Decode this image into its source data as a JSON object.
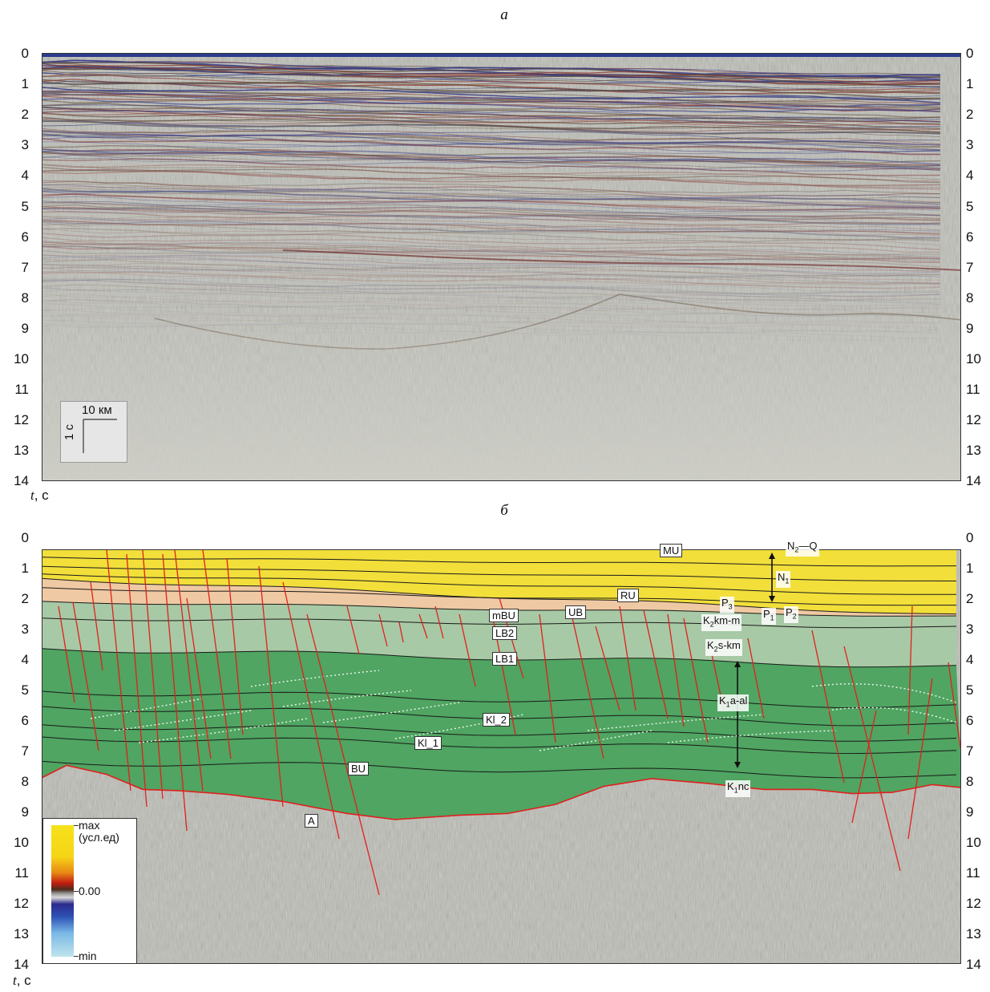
{
  "panel_a": {
    "letter": "а",
    "ticks": [
      "0",
      "1",
      "2",
      "3",
      "4",
      "5",
      "6",
      "7",
      "8",
      "9",
      "10",
      "11",
      "12",
      "13",
      "14"
    ],
    "axis_unit_var": "t",
    "axis_unit": ", с",
    "scale_horizontal": "10 км",
    "scale_vertical": "1 с"
  },
  "panel_b": {
    "letter": "б",
    "ticks": [
      "0",
      "1",
      "2",
      "3",
      "4",
      "5",
      "6",
      "7",
      "8",
      "9",
      "10",
      "11",
      "12",
      "13",
      "14"
    ],
    "axis_unit_var": "t",
    "axis_unit": ", с",
    "horizon_labels": [
      "MU",
      "RU",
      "mBU",
      "UB",
      "LB2",
      "LB1",
      "Kl_2",
      "Kl_1",
      "BU",
      "A"
    ],
    "strat_labels": {
      "n2q": {
        "a": "N",
        "sub": "2",
        "b": "—Q"
      },
      "n1": {
        "a": "N",
        "sub": "1",
        "b": ""
      },
      "p3": {
        "a": "P",
        "sub": "3",
        "b": ""
      },
      "p1": {
        "a": "P",
        "sub": "1",
        "b": ""
      },
      "p2": {
        "a": "P",
        "sub": "2",
        "b": ""
      },
      "k2kmm": {
        "a": "K",
        "sub": "2",
        "b": "km-m"
      },
      "k2skm": {
        "a": "K",
        "sub": "2",
        "b": "s-km"
      },
      "k1aal": {
        "a": "K",
        "sub": "1",
        "b": "a-al"
      },
      "k1nc": {
        "a": "K",
        "sub": "1",
        "b": "nc"
      }
    },
    "legend": {
      "max": "max",
      "unit": "(усл.ед)",
      "zero": "0.00",
      "min": "min"
    }
  },
  "colors": {
    "neogene": "#f2df3a",
    "paleogene": "#efc9a3",
    "upper_cretaceous": "#a8c9a5",
    "lower_cretaceous": "#4fa561",
    "faults": "#e0201e",
    "basement": "#bdbdb6"
  }
}
